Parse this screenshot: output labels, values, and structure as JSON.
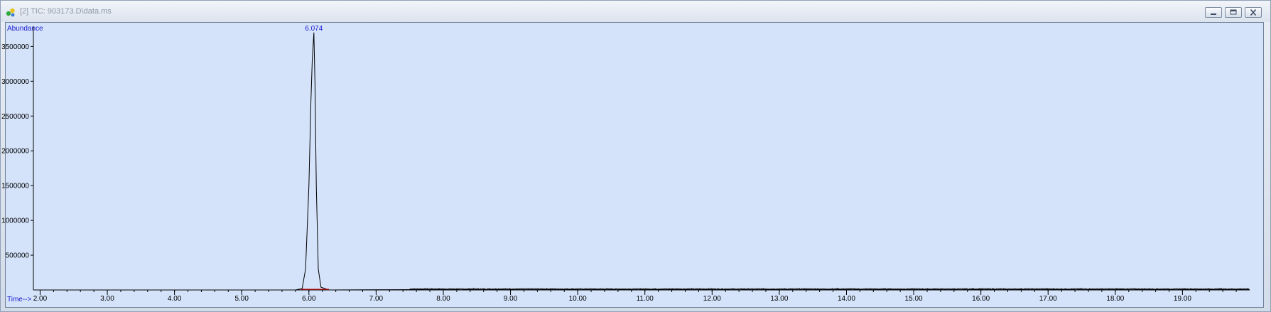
{
  "window": {
    "title": "[2] TIC: 903173.D\\data.ms",
    "app_icon": "chromatogram-app-icon",
    "controls": {
      "minimize": "minimize-icon",
      "restore": "restore-icon",
      "close": "close-icon"
    }
  },
  "colors": {
    "plot_background": "#d4e3fa",
    "trace": "#000000",
    "label_blue": "#1a1acc",
    "baseline_marker": "#d01818"
  },
  "chart_data": {
    "type": "line",
    "ylabel": "Abundance",
    "xlabel": "Time-->",
    "xlim": [
      1.9,
      20.0
    ],
    "ylim": [
      0,
      3790000
    ],
    "x_ticks": [
      "2.00",
      "3.00",
      "4.00",
      "5.00",
      "6.00",
      "7.00",
      "8.00",
      "9.00",
      "10.00",
      "11.00",
      "12.00",
      "13.00",
      "14.00",
      "15.00",
      "16.00",
      "17.00",
      "18.00",
      "19.00"
    ],
    "y_ticks": [
      "500000",
      "1000000",
      "1500000",
      "2000000",
      "2500000",
      "3000000",
      "3500000"
    ],
    "series": [
      {
        "x": [
          1.9,
          5.8,
          5.9,
          5.95,
          6.0,
          6.03,
          6.05,
          6.074,
          6.09,
          6.11,
          6.14,
          6.18,
          6.3,
          7.5,
          12.0,
          20.0
        ],
        "y": [
          0,
          0,
          20000,
          300000,
          1500000,
          2700000,
          3300000,
          3700000,
          3000000,
          1500000,
          300000,
          40000,
          0,
          5000,
          5000,
          5000
        ]
      }
    ],
    "peak_labels": [
      {
        "x": 6.074,
        "label": "6.074"
      }
    ],
    "grid": false,
    "legend": "none"
  }
}
